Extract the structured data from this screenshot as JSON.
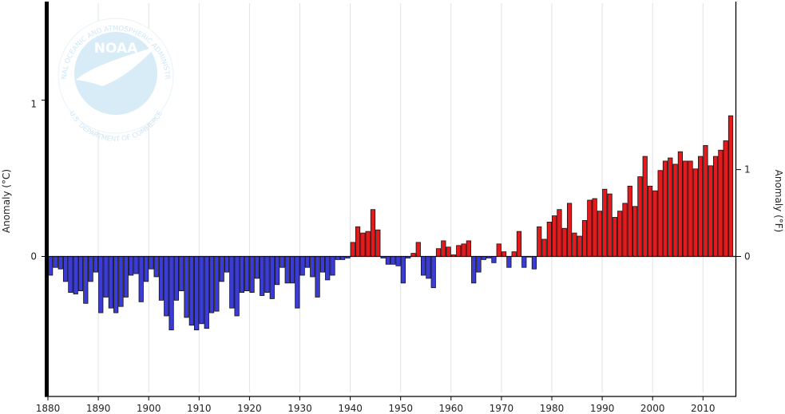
{
  "chart_data": {
    "type": "bar",
    "title": "",
    "xlabel": "",
    "ylabel_left": "Anomaly (°C)",
    "ylabel_right": "Anomaly (°F)",
    "x_start_year": 1880,
    "x_end_year": 2015,
    "xlim": [
      1880,
      2016
    ],
    "ylim_c": [
      -0.97,
      1.0
    ],
    "y_ticks_left": [
      1,
      0
    ],
    "y_ticks_right_f": [
      1,
      0
    ],
    "x_ticks": [
      1880,
      1890,
      1900,
      1910,
      1920,
      1930,
      1940,
      1950,
      1960,
      1970,
      1980,
      1990,
      2000,
      2010
    ],
    "grid": "vertical",
    "positive_color": "#e41a1c",
    "negative_color": "#3b3bd6",
    "anomalies_c": [
      -0.12,
      -0.07,
      -0.08,
      -0.16,
      -0.23,
      -0.24,
      -0.22,
      -0.3,
      -0.16,
      -0.1,
      -0.36,
      -0.26,
      -0.33,
      -0.36,
      -0.32,
      -0.26,
      -0.12,
      -0.11,
      -0.29,
      -0.16,
      -0.08,
      -0.13,
      -0.28,
      -0.38,
      -0.47,
      -0.28,
      -0.22,
      -0.39,
      -0.44,
      -0.47,
      -0.43,
      -0.46,
      -0.36,
      -0.35,
      -0.16,
      -0.1,
      -0.33,
      -0.38,
      -0.23,
      -0.22,
      -0.23,
      -0.14,
      -0.25,
      -0.23,
      -0.27,
      -0.18,
      -0.07,
      -0.17,
      -0.17,
      -0.33,
      -0.12,
      -0.07,
      -0.13,
      -0.26,
      -0.1,
      -0.15,
      -0.12,
      -0.02,
      -0.02,
      -0.01,
      0.09,
      0.19,
      0.15,
      0.16,
      0.3,
      0.17,
      -0.01,
      -0.05,
      -0.05,
      -0.06,
      -0.17,
      -0.01,
      0.02,
      0.09,
      -0.12,
      -0.14,
      -0.2,
      0.05,
      0.1,
      0.06,
      0.01,
      0.07,
      0.08,
      0.1,
      -0.17,
      -0.1,
      -0.02,
      -0.01,
      -0.04,
      0.08,
      0.03,
      -0.07,
      0.03,
      0.16,
      -0.07,
      0.0,
      -0.08,
      0.19,
      0.11,
      0.22,
      0.26,
      0.3,
      0.18,
      0.34,
      0.15,
      0.13,
      0.23,
      0.36,
      0.37,
      0.29,
      0.43,
      0.4,
      0.25,
      0.29,
      0.34,
      0.45,
      0.32,
      0.51,
      0.64,
      0.45,
      0.42,
      0.55,
      0.61,
      0.63,
      0.59,
      0.67,
      0.61,
      0.61,
      0.56,
      0.64,
      0.71,
      0.58,
      0.64,
      0.68,
      0.74,
      0.9
    ]
  },
  "logo": {
    "name": "noaa-logo",
    "text": "NOAA",
    "arc_top": "NATIONAL OCEANIC AND ATMOSPHERIC ADMINISTRATION",
    "arc_bottom": "U.S. DEPARTMENT OF COMMERCE"
  }
}
